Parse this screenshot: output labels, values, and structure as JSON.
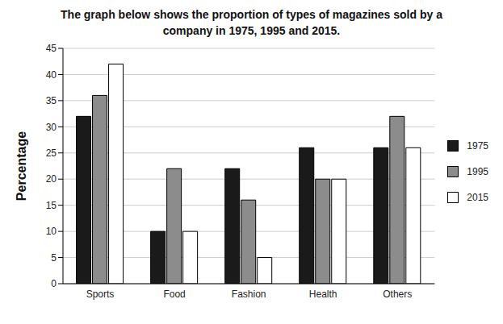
{
  "chart_data": {
    "type": "bar",
    "title": "The graph below shows the proportion of types of magazines sold by a company in 1975, 1995 and 2015.",
    "y_label": "Percentage",
    "categories": [
      "Sports",
      "Food",
      "Fashion",
      "Health",
      "Others"
    ],
    "series": [
      {
        "name": "1975",
        "color": "#1a1a1a",
        "values": [
          32,
          10,
          22,
          26,
          26
        ]
      },
      {
        "name": "1995",
        "color": "#8c8c8c",
        "values": [
          36,
          22,
          16,
          20,
          32
        ]
      },
      {
        "name": "2015",
        "color": "#ffffff",
        "values": [
          42,
          10,
          5,
          20,
          26
        ]
      }
    ],
    "ylim": [
      0,
      45
    ],
    "yticks": [
      0,
      5,
      10,
      15,
      20,
      25,
      30,
      35,
      40,
      45
    ],
    "grid": true,
    "legend": "right"
  }
}
